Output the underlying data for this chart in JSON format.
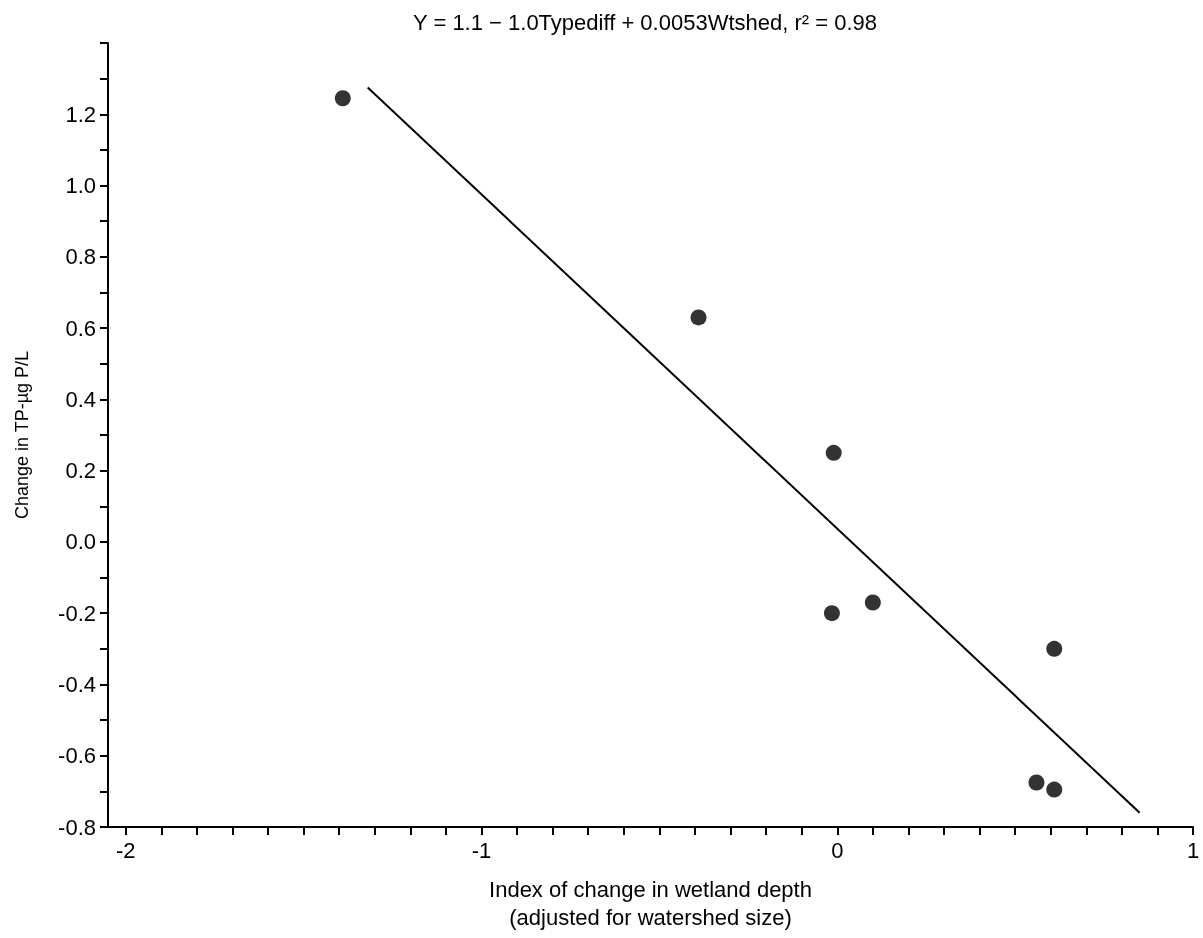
{
  "chart_data": {
    "type": "scatter",
    "title": "Y = 1.1 − 1.0Typediff + 0.0053Wtshed, r² = 0.98",
    "xlabel": "Index of change in wetland depth\n(adjusted for watershed size)",
    "ylabel": "Change in TP-µg P/L",
    "series": [
      {
        "color": "#000000",
        "marker": "circle",
        "x": [
          -1.39,
          -0.39,
          -0.01,
          -0.015,
          0.1,
          0.61,
          0.56,
          0.61
        ],
        "values": [
          1.245,
          0.63,
          0.25,
          -0.2,
          -0.17,
          -0.3,
          -0.675,
          -0.695
        ]
      },
      {
        "type": "line",
        "color": "#000000",
        "marker": "none",
        "line_style": "solid",
        "x": [
          -1.32,
          0.85
        ],
        "values": [
          1.275,
          -0.76
        ]
      }
    ],
    "xlim": [
      -2.05,
      1.0
    ],
    "ylim": [
      -0.8,
      1.4
    ],
    "xticks": [
      -2,
      {
        "value": -1.9,
        "label": null
      },
      {
        "value": -1.8,
        "label": null
      },
      {
        "value": -1.7,
        "label": null
      },
      {
        "value": -1.6,
        "label": null
      },
      {
        "value": -1.5,
        "label": null
      },
      {
        "value": -1.4,
        "label": null
      },
      {
        "value": -1.3,
        "label": null
      },
      {
        "value": -1.2,
        "label": null
      },
      {
        "value": -1.1,
        "label": null
      },
      -1,
      {
        "value": -0.9,
        "label": null
      },
      {
        "value": -0.8,
        "label": null
      },
      {
        "value": -0.7,
        "label": null
      },
      {
        "value": -0.6,
        "label": null
      },
      {
        "value": -0.5,
        "label": null
      },
      {
        "value": -0.4,
        "label": null
      },
      {
        "value": -0.3,
        "label": null
      },
      {
        "value": -0.2,
        "label": null
      },
      {
        "value": -0.1,
        "label": null
      },
      0,
      {
        "value": 0.1,
        "label": null
      },
      {
        "value": 0.2,
        "label": null
      },
      {
        "value": 0.3,
        "label": null
      },
      {
        "value": 0.4,
        "label": null
      },
      {
        "value": 0.5,
        "label": null
      },
      {
        "value": 0.6,
        "label": null
      },
      {
        "value": 0.7,
        "label": null
      },
      {
        "value": 0.8,
        "label": null
      },
      {
        "value": 0.9,
        "label": null
      },
      1
    ],
    "yticks": [
      {
        "value": -0.8,
        "label": "-0.8"
      },
      {
        "value": -0.7,
        "label": null
      },
      {
        "value": -0.6,
        "label": "-0.6"
      },
      {
        "value": -0.5,
        "label": null
      },
      {
        "value": -0.4,
        "label": "-0.4"
      },
      {
        "value": -0.3,
        "label": null
      },
      {
        "value": -0.2,
        "label": "-0.2"
      },
      {
        "value": -0.1,
        "label": null
      },
      {
        "value": 0,
        "label": "0.0"
      },
      {
        "value": 0.1,
        "label": null
      },
      {
        "value": 0.2,
        "label": "0.2"
      },
      {
        "value": 0.3,
        "label": null
      },
      {
        "value": 0.4,
        "label": "0.4"
      },
      {
        "value": 0.5,
        "label": null
      },
      {
        "value": 0.6,
        "label": "0.6"
      },
      {
        "value": 0.7,
        "label": null
      },
      {
        "value": 0.8,
        "label": "0.8"
      },
      {
        "value": 0.9,
        "label": null
      },
      {
        "value": 1.0,
        "label": "1.0"
      },
      {
        "value": 1.1,
        "label": null
      },
      {
        "value": 1.2,
        "label": "1.2"
      },
      {
        "value": 1.3,
        "label": null
      },
      {
        "value": 1.4,
        "label": null
      }
    ],
    "grid": false
  }
}
